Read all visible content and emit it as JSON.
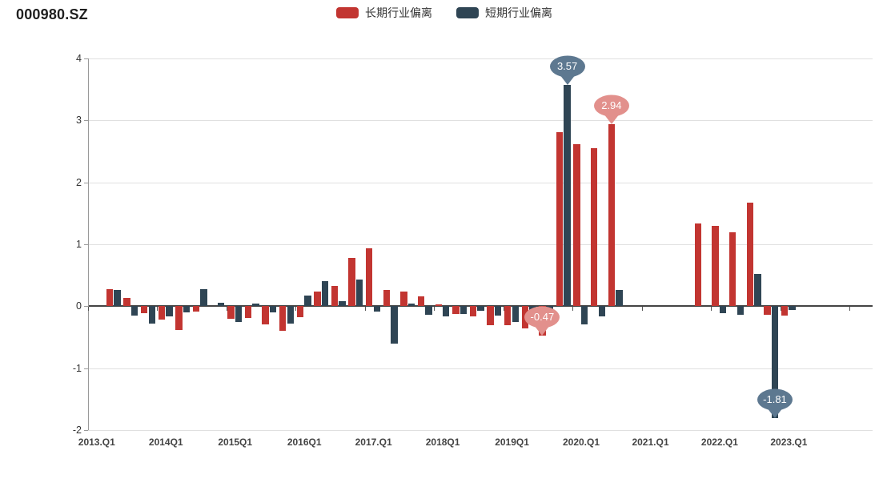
{
  "page": {
    "title": "000980.SZ",
    "background": "#ffffff"
  },
  "legend": {
    "items": [
      {
        "label": "长期行业偏离",
        "color": "#c23531"
      },
      {
        "label": "短期行业偏离",
        "color": "#2f4554"
      }
    ]
  },
  "chart_data": {
    "type": "bar",
    "title": "000980.SZ",
    "categories": [
      "2013Q1",
      "2013Q2",
      "2013Q3",
      "2013Q4",
      "2014Q1",
      "2014Q2",
      "2014Q3",
      "2014Q4",
      "2015Q1",
      "2015Q2",
      "2015Q3",
      "2015Q4",
      "2016Q1",
      "2016Q2",
      "2016Q3",
      "2016Q4",
      "2017Q1",
      "2017Q2",
      "2017Q3",
      "2017Q4",
      "2018Q1",
      "2018Q2",
      "2018Q3",
      "2018Q4",
      "2019Q1",
      "2019Q2",
      "2019Q3",
      "2019Q4",
      "2020Q1",
      "2020Q2",
      "2020Q3",
      "2020Q4",
      "2021Q1",
      "2021Q2",
      "2021Q3",
      "2021Q4",
      "2022Q1",
      "2022Q2",
      "2022Q3",
      "2022Q4",
      "2023Q1"
    ],
    "x_tick_labels": [
      "2013.Q1",
      "2014Q1",
      "2015Q1",
      "2016Q1",
      "2017.Q1",
      "2018Q1",
      "2019Q1",
      "2020.Q1",
      "2021.Q1",
      "2022.Q1",
      "2023.Q1"
    ],
    "series": [
      {
        "name": "长期行业偏离",
        "color": "#c23531",
        "values": [
          0,
          0.27,
          0.13,
          -0.11,
          -0.22,
          -0.38,
          -0.08,
          0,
          -0.2,
          -0.19,
          -0.29,
          -0.4,
          -0.18,
          0.24,
          0.33,
          0.78,
          0.93,
          0.26,
          0.24,
          0.16,
          0.03,
          -0.12,
          -0.16,
          -0.31,
          -0.31,
          -0.36,
          -0.47,
          2.81,
          2.61,
          2.55,
          2.94,
          0,
          0,
          0,
          0,
          1.34,
          1.3,
          1.19,
          1.67,
          -0.14,
          -0.15
        ]
      },
      {
        "name": "短期行业偏离",
        "color": "#2f4554",
        "values": [
          0,
          0.26,
          -0.15,
          -0.28,
          -0.16,
          -0.1,
          0.27,
          0.06,
          -0.26,
          0.04,
          -0.1,
          -0.28,
          0.17,
          0.41,
          0.08,
          0.43,
          -0.08,
          -0.6,
          0.04,
          -0.14,
          -0.17,
          -0.13,
          -0.07,
          -0.15,
          -0.26,
          -0.1,
          -0.08,
          3.57,
          -0.29,
          -0.16,
          0.26,
          0,
          0,
          0,
          0,
          0,
          -0.11,
          -0.14,
          0.52,
          -1.81,
          -0.06
        ]
      }
    ],
    "ylim": [
      -2,
      4
    ],
    "y_ticks": [
      4,
      3,
      2,
      1,
      0,
      -1,
      -2
    ],
    "grid": true,
    "legend_position": "top-center",
    "annotations": [
      {
        "text": "3.57",
        "series": "短期行业偏离",
        "category": "2019Q4",
        "value": 3.57,
        "color": "#5d7890"
      },
      {
        "text": "2.94",
        "series": "长期行业偏离",
        "category": "2020Q3",
        "value": 2.94,
        "color": "#e2908c"
      },
      {
        "text": "-0.47",
        "series": "长期行业偏离",
        "category": "2019Q3",
        "value": -0.47,
        "color": "#e2908c"
      },
      {
        "text": "-1.81",
        "series": "短期行业偏离",
        "category": "2022Q4",
        "value": -1.81,
        "color": "#5d7890"
      }
    ]
  }
}
